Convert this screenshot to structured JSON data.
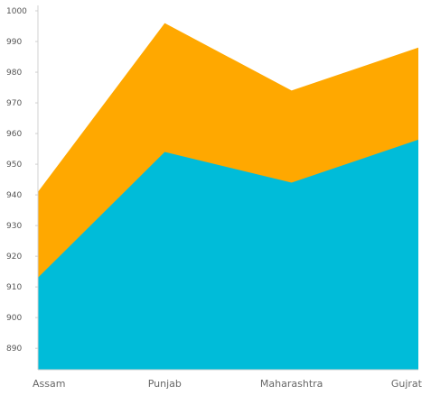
{
  "chart_data": {
    "type": "area",
    "stacked": false,
    "title": "",
    "xlabel": "",
    "ylabel": "",
    "categories": [
      "Assam",
      "Punjab",
      "Maharashtra",
      "Gujrat"
    ],
    "ylim": [
      883,
      1000
    ],
    "yticks": [
      890,
      900,
      910,
      920,
      930,
      940,
      950,
      960,
      970,
      980,
      990,
      1000
    ],
    "ytick_labels": [
      "890",
      "900",
      "910",
      "920",
      "930",
      "940",
      "950",
      "960",
      "970",
      "980",
      "990",
      "1000"
    ],
    "series": [
      {
        "color": "#FFA800",
        "values": [
          941,
          996,
          974,
          988
        ]
      },
      {
        "color": "#00BCD9",
        "values": [
          913,
          954,
          944,
          958
        ]
      }
    ],
    "grid": false,
    "legend": "none"
  }
}
